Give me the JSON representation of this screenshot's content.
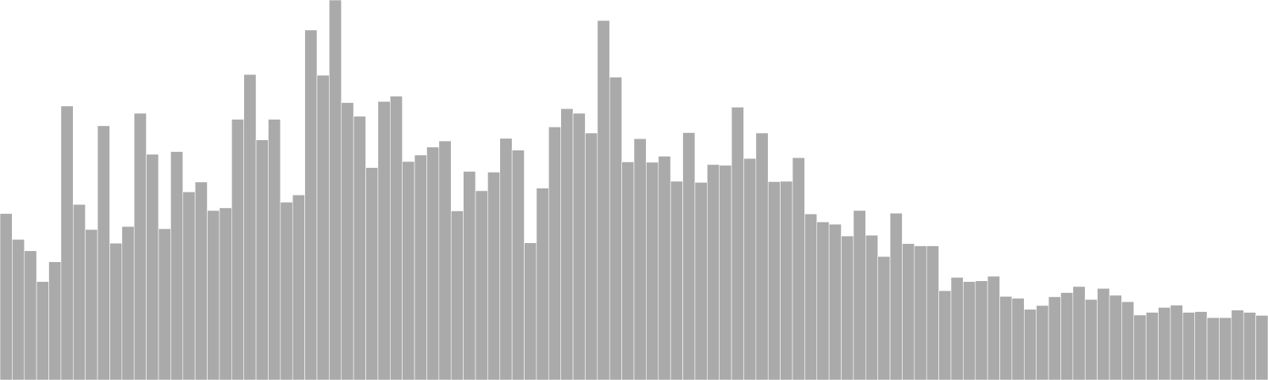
{
  "chart_data": {
    "type": "bar",
    "title": "",
    "xlabel": "",
    "ylabel": "",
    "ylim": [
      0,
      100
    ],
    "grid": false,
    "legend": "none",
    "colors": {
      "bar_fill": "#aaaaaa",
      "bar_stroke": "#ffffff",
      "background": "#ffffff"
    },
    "values": [
      43.8,
      37.0,
      34.0,
      25.9,
      31.1,
      72.1,
      46.2,
      39.6,
      66.9,
      36.0,
      40.4,
      70.2,
      59.4,
      39.8,
      60.1,
      49.5,
      52.1,
      44.6,
      45.3,
      68.6,
      80.4,
      63.2,
      68.6,
      46.8,
      48.7,
      92.1,
      80.2,
      100.0,
      73.0,
      69.4,
      55.9,
      73.3,
      74.7,
      57.5,
      59.2,
      61.3,
      62.9,
      44.5,
      54.9,
      49.8,
      54.7,
      63.6,
      60.5,
      36.1,
      50.5,
      66.6,
      71.4,
      70.2,
      65.0,
      94.6,
      79.7,
      57.4,
      63.5,
      57.3,
      58.9,
      52.3,
      65.1,
      52.0,
      56.7,
      56.5,
      71.8,
      58.3,
      65.0,
      52.2,
      52.3,
      58.5,
      43.7,
      41.6,
      41.0,
      37.9,
      44.6,
      38.1,
      32.5,
      43.9,
      35.9,
      35.3,
      35.3,
      23.5,
      27.0,
      25.9,
      26.1,
      27.3,
      22.0,
      21.5,
      18.6,
      19.6,
      21.9,
      23.0,
      24.6,
      21.2,
      24.1,
      22.3,
      20.6,
      17.1,
      17.8,
      19.1,
      19.7,
      17.8,
      18.0,
      16.4,
      16.4,
      18.4,
      17.8,
      17.0
    ]
  }
}
